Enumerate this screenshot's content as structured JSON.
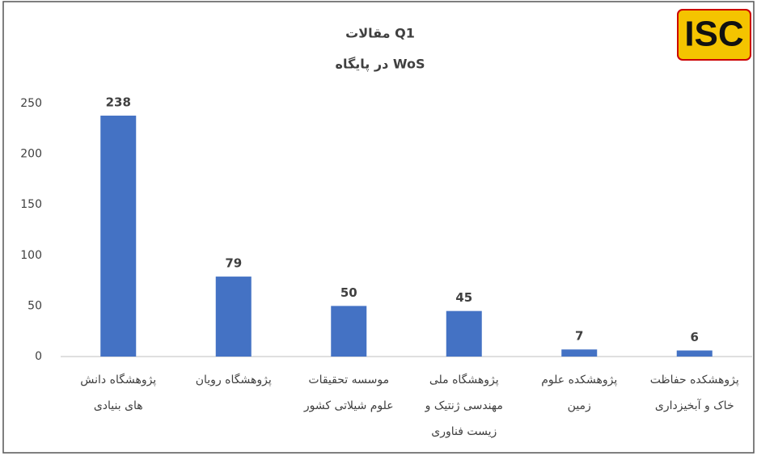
{
  "logo": "ISC",
  "chart_data": {
    "type": "bar",
    "title": "مقالات Q1",
    "subtitle": "در پایگاه WoS",
    "categories": [
      "پژوهشگاه دانش\nهای بنیادی",
      "پژوهشگاه رویان",
      "موسسه تحقیقات\nعلوم شیلاتی کشور",
      "پژوهشگاه ملی\nمهندسی ژنتیک و\nزیست فناوری",
      "پژوهشکده علوم\nزمین",
      "پژوهشکده حفاظت\nخاک و آبخیزداری"
    ],
    "values": [
      238,
      79,
      50,
      45,
      7,
      6
    ],
    "color": "#4472c4",
    "ylim": [
      0,
      250
    ],
    "yticks": [
      0,
      50,
      100,
      150,
      200,
      250
    ],
    "grid": false
  }
}
